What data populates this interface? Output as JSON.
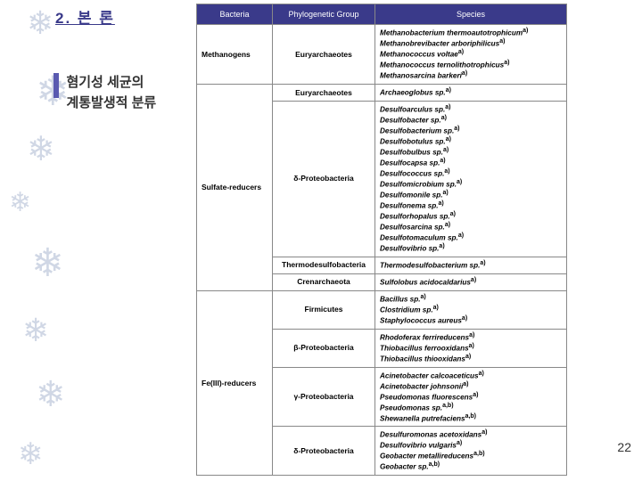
{
  "section_title": "2. 본 론",
  "subtitle_l1": "혐기성 세균의",
  "subtitle_l2": "계통발생적 분류",
  "headers": {
    "c1": "Bacteria",
    "c2": "Phylogenetic Group",
    "c3": "Species"
  },
  "rows": [
    {
      "bacteria": "Methanogens",
      "group": "Euryarchaeotes",
      "species": "Methanobacterium thermoautotrophicum<sup>a)</sup><br>Methanobrevibacter arboriphilicus<sup>a)</sup><br>Methanococcus voltae<sup>a)</sup><br>Methanococcus ternolithotrophicus<sup>a)</sup><br>Methanosarcina barkeri<sup>a)</sup>"
    },
    {
      "bacteria": "Sulfate-reducers",
      "bacteria_rowspan": 4,
      "group": "Euryarchaeotes",
      "species": "Archaeoglobus sp.<sup>a)</sup>"
    },
    {
      "group": "δ-Proteobacteria",
      "species": "Desulfoarculus sp.<sup>a)</sup><br>Desulfobacter sp.<sup>a)</sup><br>Desulfobacterium sp.<sup>a)</sup><br>Desulfobotulus sp.<sup>a)</sup><br>Desulfobulbus sp.<sup>a)</sup><br>Desulfocapsa sp.<sup>a)</sup><br>Desulfococcus sp.<sup>a)</sup><br>Desulfomicrobium sp.<sup>a)</sup><br>Desulfomonile sp.<sup>a)</sup><br>Desulfonema sp.<sup>a)</sup><br>Desulforhopalus sp.<sup>a)</sup><br>Desulfosarcina sp.<sup>a)</sup><br>Desulfotomaculum sp.<sup>a)</sup><br>Desulfovibrio sp.<sup>a)</sup>"
    },
    {
      "group": "Thermodesulfobacteria",
      "species": "Thermodesulfobacterium sp.<sup>a)</sup>"
    },
    {
      "group": "Crenarchaeota",
      "species": "Sulfolobus acidocaldarius<sup>a)</sup>"
    },
    {
      "bacteria": "Fe(III)-reducers",
      "bacteria_rowspan": 4,
      "group": "Firmicutes",
      "species": "Bacillus sp.<sup>a)</sup><br>Clostridium sp.<sup>a)</sup><br>Staphylococcus aureus<sup>a)</sup>"
    },
    {
      "group": "β-Proteobacteria",
      "species": "Rhodoferax ferrireducens<sup>a)</sup><br>Thiobacillus ferrooxidans<sup>a)</sup><br>Thiobacillus thiooxidans<sup>a)</sup>"
    },
    {
      "group": "γ-Proteobacteria",
      "species": "Acinetobacter calcoaceticus<sup>a)</sup><br>Acinetobacter johnsonii<sup>a)</sup><br>Pseudomonas fluorescens<sup>a)</sup><br>Pseudomonas sp.<sup>a,b)</sup><br>Shewanella putrefaciens<sup>a,b)</sup>"
    },
    {
      "group": "δ-Proteobacteria",
      "species": "Desulfuromonas acetoxidans<sup>a)</sup><br>Desulfovibrio vulgaris<sup>a)</sup><br>Geobacter metallireducens<sup>a,b)</sup><br>Geobacter sp.<sup>a,b)</sup>"
    }
  ],
  "page_number": "22",
  "colors": {
    "header_bg": "#3a3a8a",
    "header_fg": "#ffffff",
    "title_fg": "#3a3a8a",
    "border": "#888888"
  }
}
